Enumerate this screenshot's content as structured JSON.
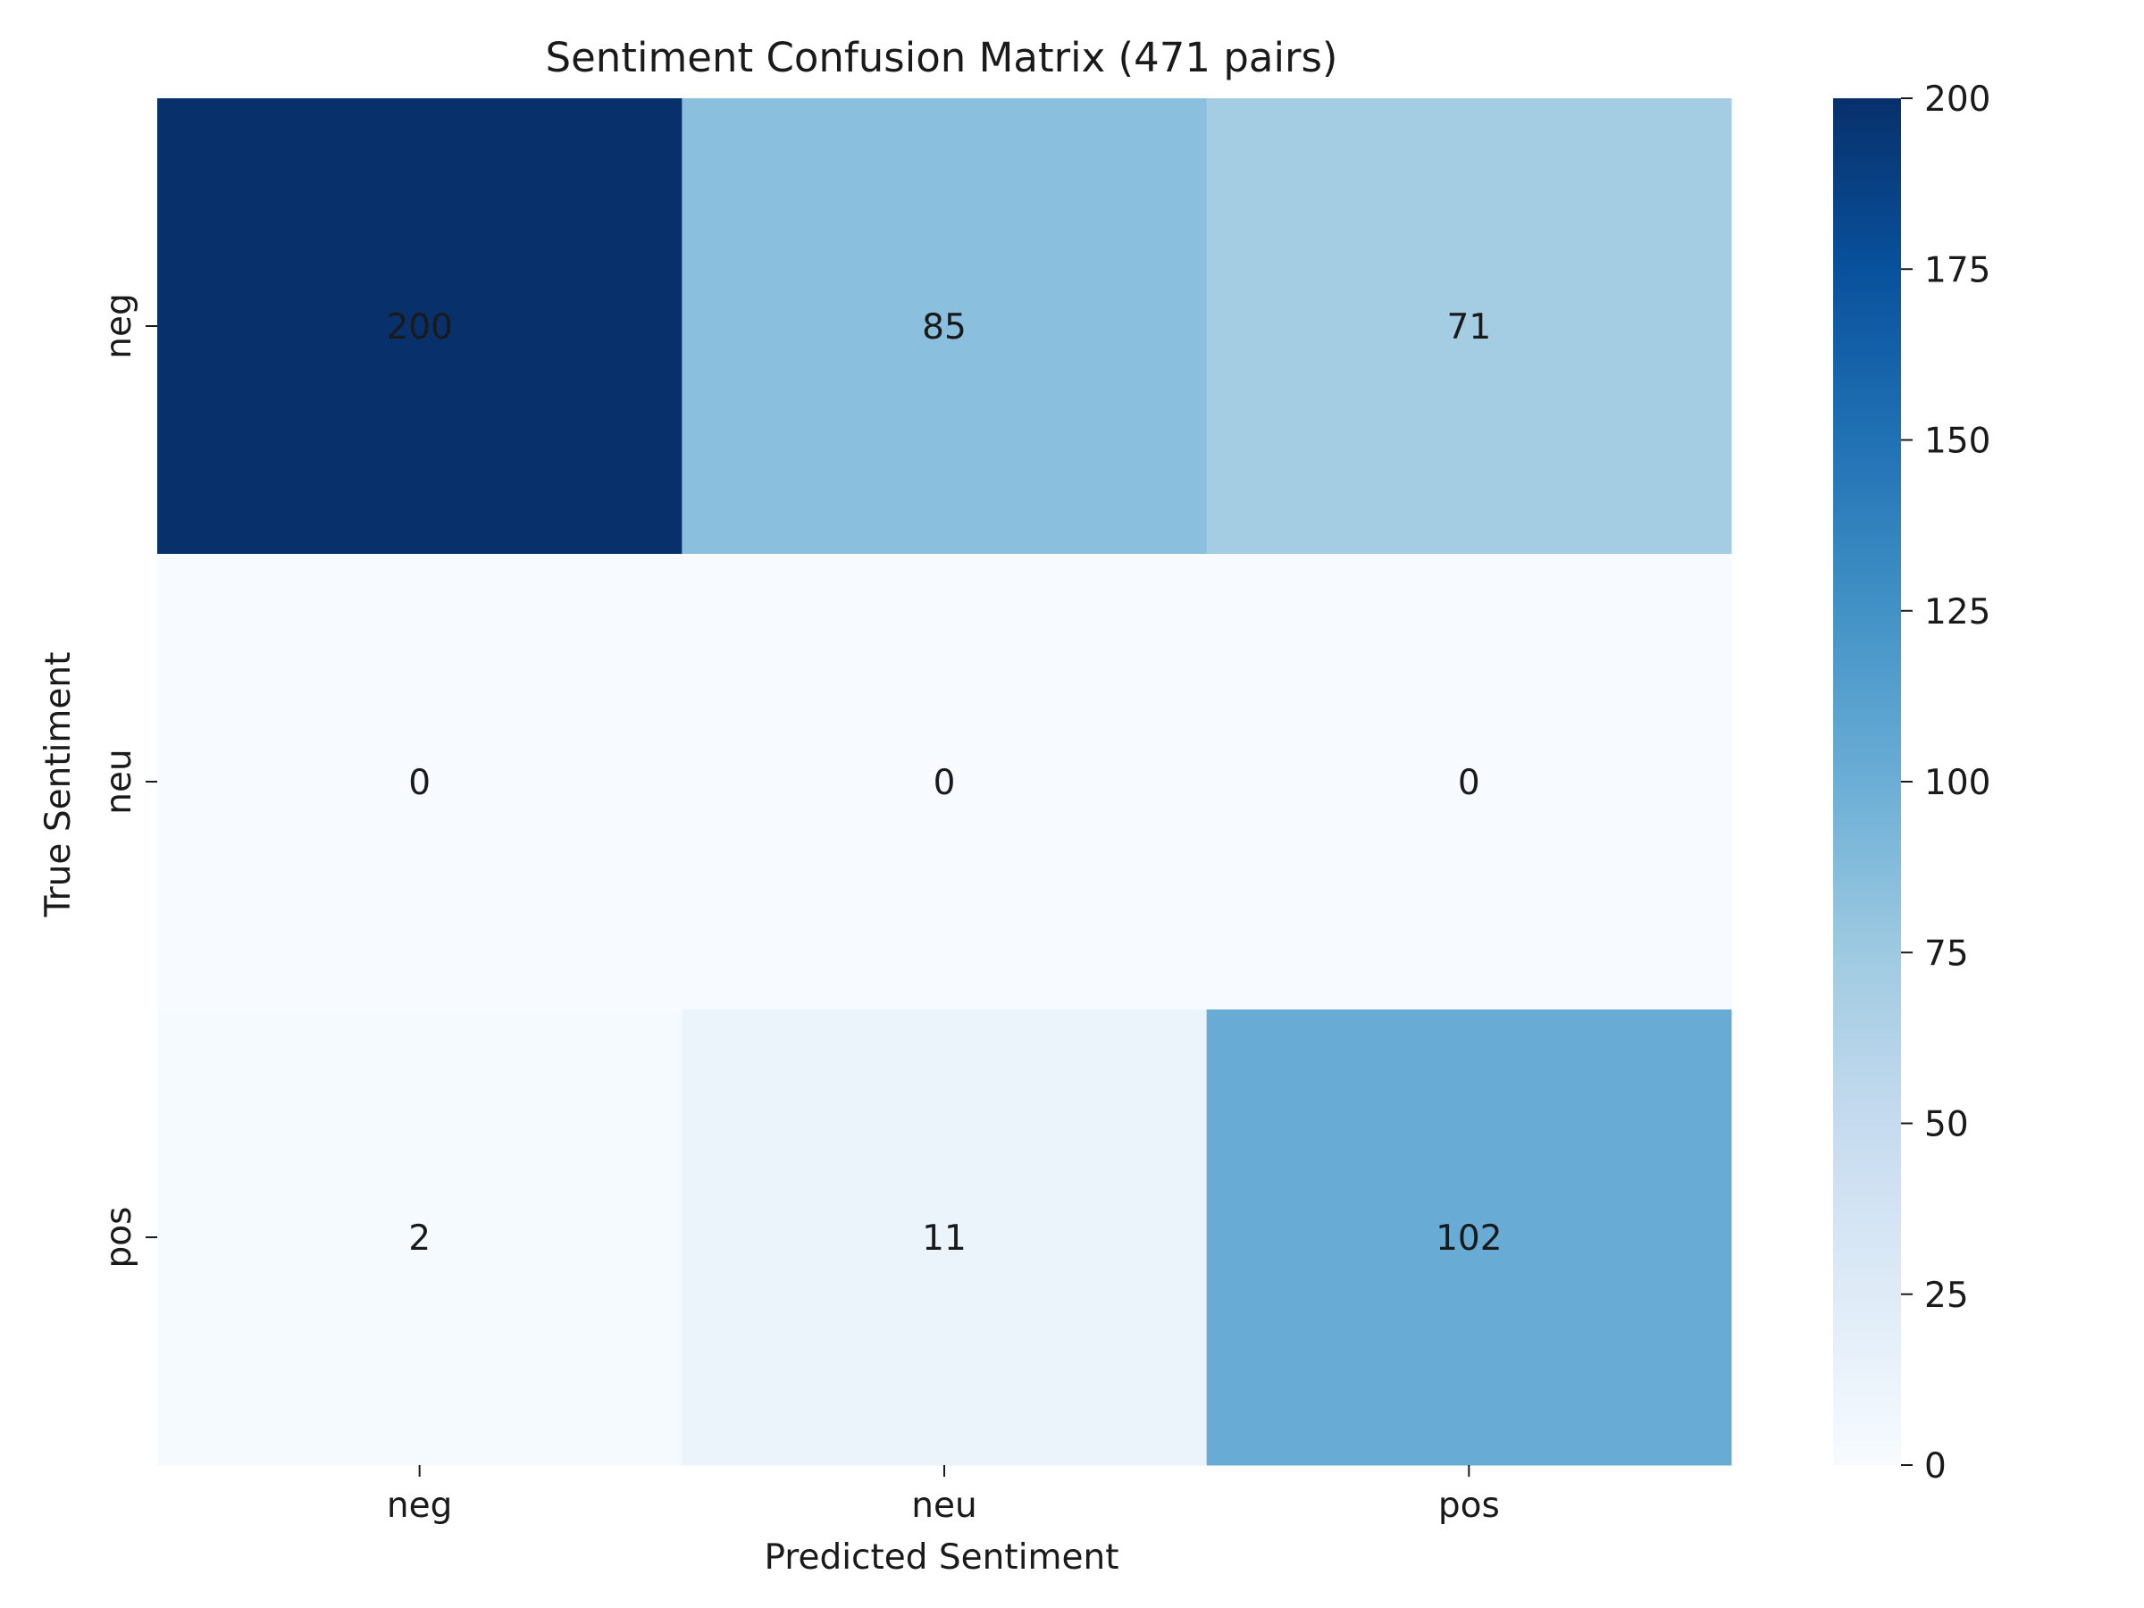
{
  "chart_data": {
    "type": "heatmap",
    "title": "Sentiment Confusion Matrix (471 pairs)",
    "xlabel": "Predicted Sentiment",
    "ylabel": "True Sentiment",
    "x_categories": [
      "neg",
      "neu",
      "pos"
    ],
    "y_categories": [
      "neg",
      "neu",
      "pos"
    ],
    "values": [
      [
        200,
        85,
        71
      ],
      [
        0,
        0,
        0
      ],
      [
        2,
        11,
        102
      ]
    ],
    "colorbar": {
      "range": [
        0,
        200
      ],
      "ticks": [
        0,
        25,
        50,
        75,
        100,
        125,
        150,
        175,
        200
      ],
      "colormap": "Blues"
    },
    "colors": {
      "low": "#f7fbff",
      "high": "#08306b"
    }
  }
}
